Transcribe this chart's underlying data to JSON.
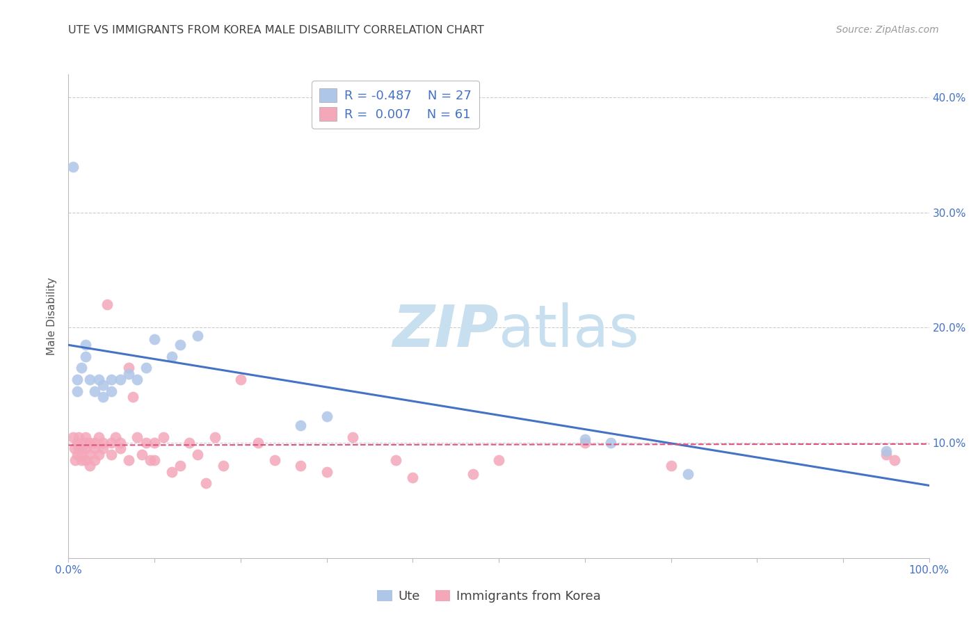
{
  "title": "UTE VS IMMIGRANTS FROM KOREA MALE DISABILITY CORRELATION CHART",
  "source": "Source: ZipAtlas.com",
  "ylabel": "Male Disability",
  "xlim": [
    0,
    1.0
  ],
  "ylim": [
    0,
    0.42
  ],
  "yticks": [
    0.1,
    0.2,
    0.3,
    0.4
  ],
  "xtick_vals": [
    0.0,
    0.1,
    0.2,
    0.3,
    0.4,
    0.5,
    0.6,
    0.7,
    0.8,
    0.9,
    1.0
  ],
  "xtick_labeled": [
    0.0,
    1.0
  ],
  "ute_R": "-0.487",
  "ute_N": "27",
  "korea_R": "0.007",
  "korea_N": "61",
  "ute_color": "#aec6e8",
  "korea_color": "#f4a7b9",
  "ute_line_color": "#4472c4",
  "korea_line_color": "#e05080",
  "grid_color": "#cccccc",
  "title_color": "#404040",
  "axis_label_color": "#4472c4",
  "watermark_zip_color": "#c8dff0",
  "watermark_atlas_color": "#c8dff0",
  "ute_scatter_x": [
    0.005,
    0.01,
    0.01,
    0.015,
    0.02,
    0.02,
    0.025,
    0.03,
    0.035,
    0.04,
    0.04,
    0.05,
    0.05,
    0.06,
    0.07,
    0.08,
    0.09,
    0.1,
    0.12,
    0.13,
    0.15,
    0.27,
    0.3,
    0.6,
    0.63,
    0.72,
    0.95
  ],
  "ute_scatter_y": [
    0.34,
    0.155,
    0.145,
    0.165,
    0.185,
    0.175,
    0.155,
    0.145,
    0.155,
    0.15,
    0.14,
    0.155,
    0.145,
    0.155,
    0.16,
    0.155,
    0.165,
    0.19,
    0.175,
    0.185,
    0.193,
    0.115,
    0.123,
    0.103,
    0.1,
    0.073,
    0.093
  ],
  "korea_scatter_x": [
    0.005,
    0.007,
    0.008,
    0.01,
    0.01,
    0.012,
    0.012,
    0.015,
    0.015,
    0.015,
    0.02,
    0.02,
    0.02,
    0.02,
    0.025,
    0.025,
    0.025,
    0.03,
    0.03,
    0.03,
    0.035,
    0.035,
    0.04,
    0.04,
    0.045,
    0.05,
    0.05,
    0.055,
    0.06,
    0.06,
    0.07,
    0.07,
    0.075,
    0.08,
    0.085,
    0.09,
    0.095,
    0.1,
    0.1,
    0.11,
    0.12,
    0.13,
    0.14,
    0.15,
    0.16,
    0.17,
    0.18,
    0.2,
    0.22,
    0.24,
    0.27,
    0.3,
    0.33,
    0.38,
    0.4,
    0.47,
    0.5,
    0.6,
    0.7,
    0.95,
    0.96
  ],
  "korea_scatter_y": [
    0.105,
    0.095,
    0.085,
    0.1,
    0.09,
    0.095,
    0.105,
    0.095,
    0.09,
    0.085,
    0.105,
    0.1,
    0.095,
    0.085,
    0.1,
    0.09,
    0.08,
    0.1,
    0.095,
    0.085,
    0.105,
    0.09,
    0.1,
    0.095,
    0.22,
    0.1,
    0.09,
    0.105,
    0.1,
    0.095,
    0.085,
    0.165,
    0.14,
    0.105,
    0.09,
    0.1,
    0.085,
    0.085,
    0.1,
    0.105,
    0.075,
    0.08,
    0.1,
    0.09,
    0.065,
    0.105,
    0.08,
    0.155,
    0.1,
    0.085,
    0.08,
    0.075,
    0.105,
    0.085,
    0.07,
    0.073,
    0.085,
    0.1,
    0.08,
    0.09,
    0.085
  ],
  "ute_line_x": [
    0.0,
    1.0
  ],
  "ute_line_y": [
    0.185,
    0.063
  ],
  "korea_line_x": [
    0.0,
    1.0
  ],
  "korea_line_y": [
    0.098,
    0.099
  ]
}
